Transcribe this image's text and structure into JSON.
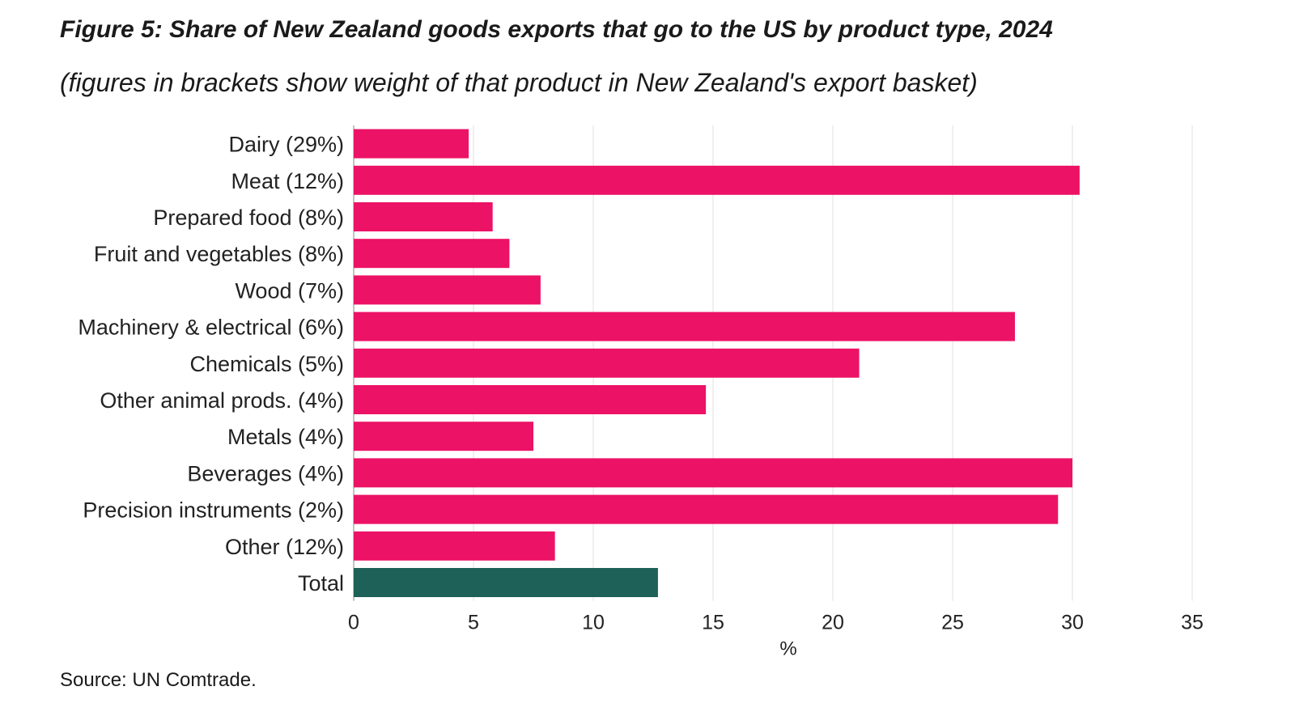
{
  "header": {
    "title": "Figure 5: Share of New Zealand goods exports that go to the US by product type, 2024",
    "subtitle": "(figures in brackets show weight of that product in New Zealand's export basket)"
  },
  "footer": {
    "source": "Source: UN Comtrade."
  },
  "colors": {
    "bar": "#ec1266",
    "total_bar": "#1d6158",
    "gridline": "#e6e6e6",
    "axis": "#999999"
  },
  "chart_data": {
    "type": "bar",
    "orientation": "horizontal",
    "categories": [
      "Dairy (29%)",
      "Meat (12%)",
      "Prepared food (8%)",
      "Fruit and vegetables (8%)",
      "Wood (7%)",
      "Machinery & electrical (6%)",
      "Chemicals (5%)",
      "Other animal prods. (4%)",
      "Metals (4%)",
      "Beverages (4%)",
      "Precision instruments (2%)",
      "Other (12%)",
      "Total"
    ],
    "values": [
      4.8,
      30.3,
      5.8,
      6.5,
      7.8,
      27.6,
      21.1,
      14.7,
      7.5,
      30.0,
      29.4,
      8.4,
      12.7
    ],
    "highlight_category": "Total",
    "xlabel": "%",
    "ylabel": "",
    "xlim": [
      0,
      35
    ],
    "xticks": [
      0,
      5,
      10,
      15,
      20,
      25,
      30,
      35
    ],
    "grid": "vertical",
    "legend": "none"
  }
}
